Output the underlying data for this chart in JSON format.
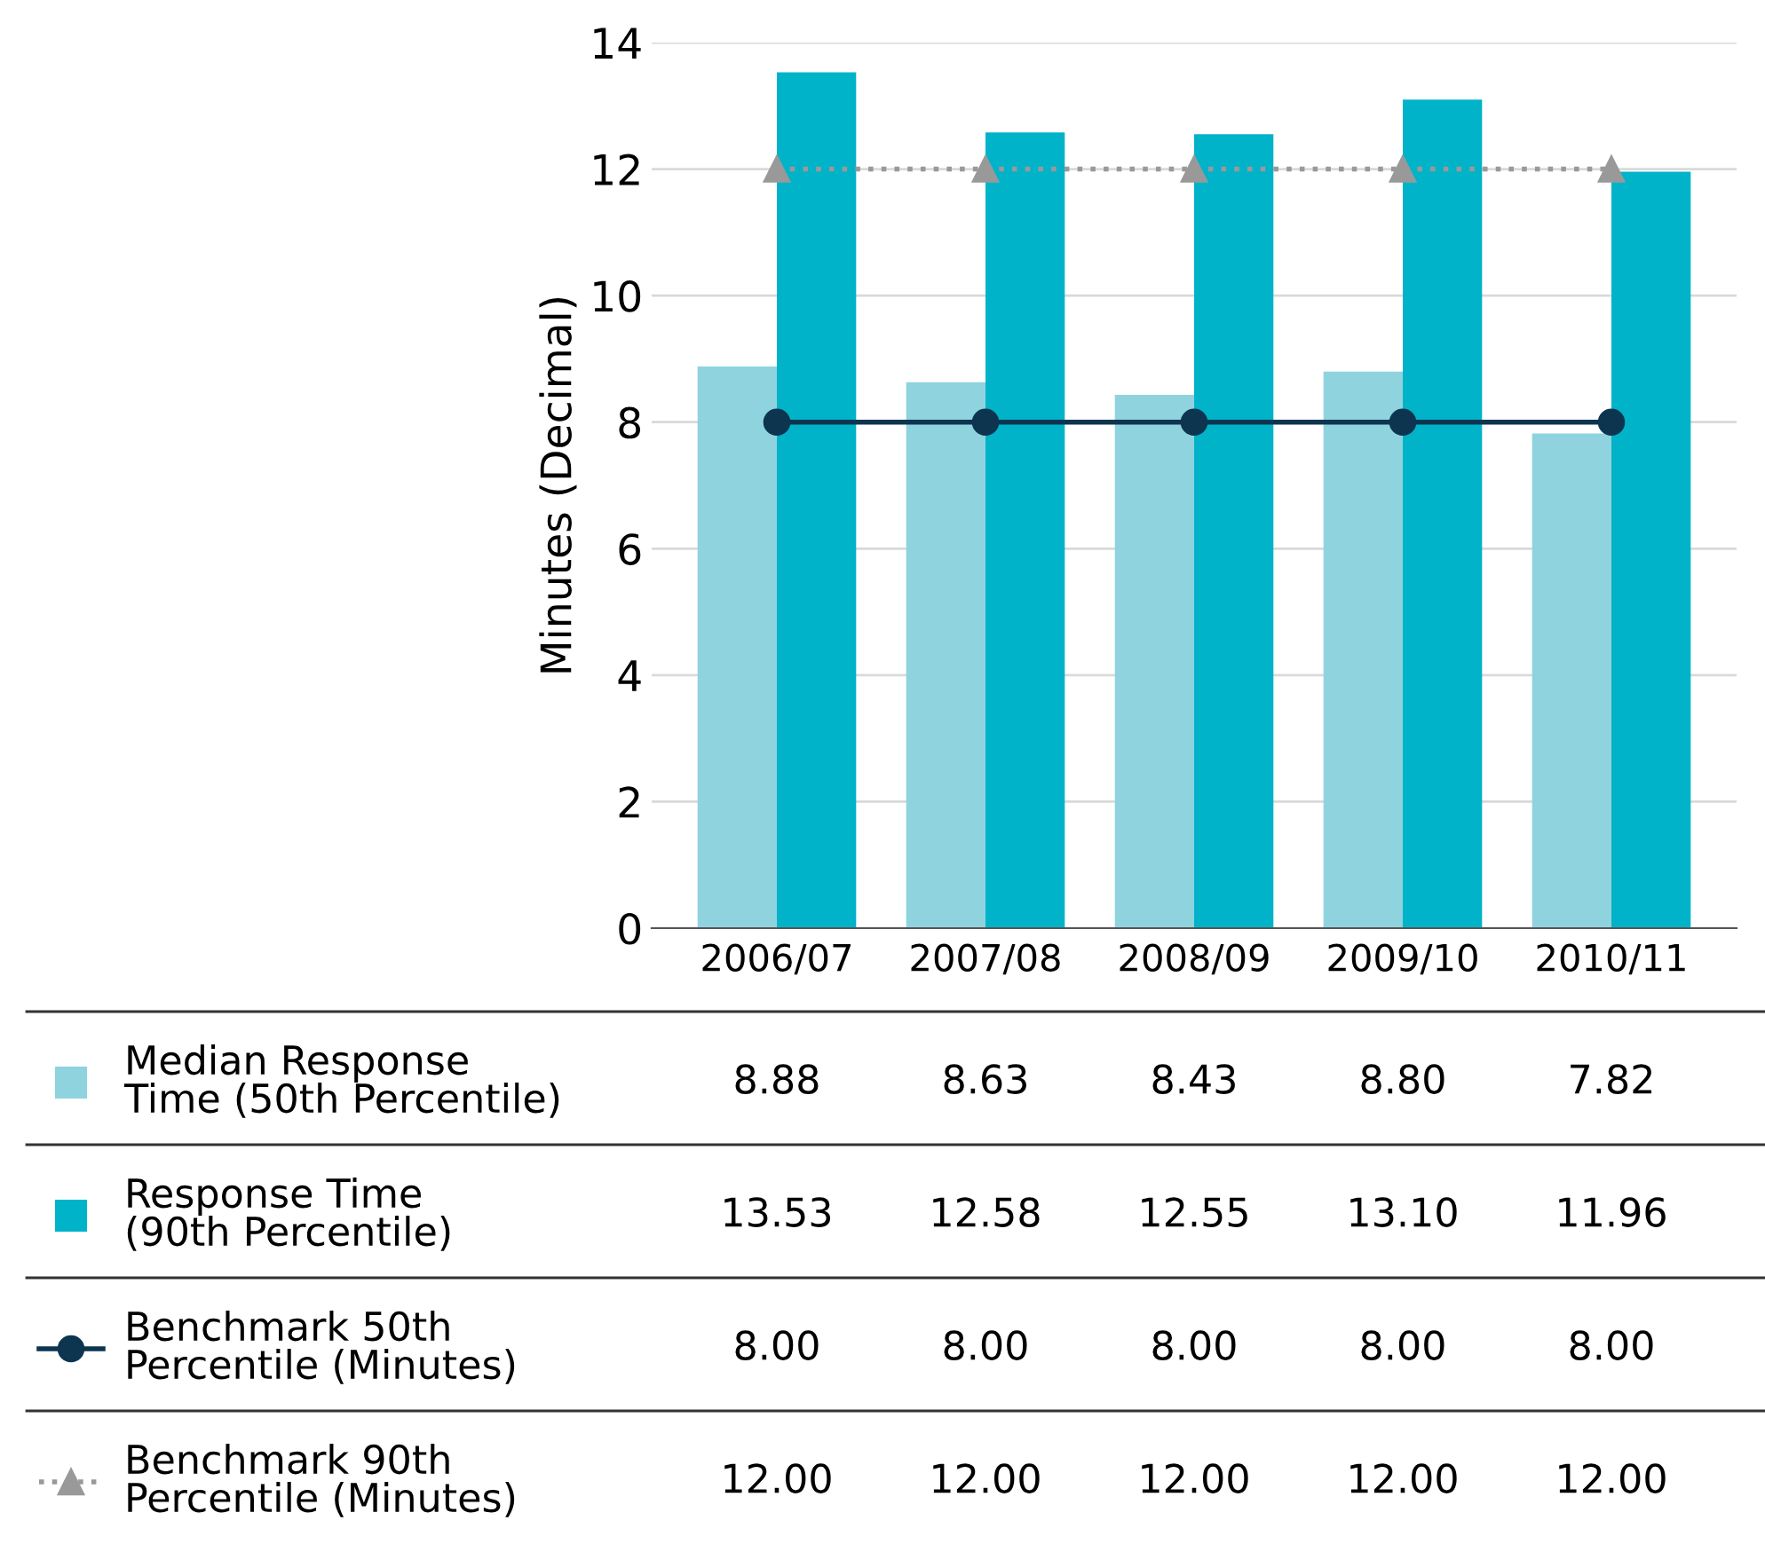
{
  "chart_data": {
    "type": "bar",
    "ylabel": "Minutes (Decimal)",
    "categories": [
      "2006/07",
      "2007/08",
      "2008/09",
      "2009/10",
      "2010/11"
    ],
    "series": [
      {
        "name": "Median Response\nTime (50th Percentile)",
        "color": "#8fd3df",
        "values": [
          8.88,
          8.63,
          8.43,
          8.8,
          7.82
        ],
        "value_labels": [
          "8.88",
          "8.63",
          "8.43",
          "8.80",
          "7.82"
        ]
      },
      {
        "name": "Response Time\n(90th Percentile)",
        "color": "#00b3c9",
        "values": [
          13.53,
          12.58,
          12.55,
          13.1,
          11.96
        ],
        "value_labels": [
          "13.53",
          "12.58",
          "12.55",
          "13.10",
          "11.96"
        ]
      },
      {
        "name": "Benchmark 50th\nPercentile (Minutes)",
        "type": "line",
        "color": "#0d3550",
        "marker": "circle",
        "line_style": "solid",
        "values": [
          8.0,
          8.0,
          8.0,
          8.0,
          8.0
        ],
        "value_labels": [
          "8.00",
          "8.00",
          "8.00",
          "8.00",
          "8.00"
        ]
      },
      {
        "name": "Benchmark 90th\nPercentile (Minutes)",
        "type": "line",
        "color": "#999999",
        "marker": "triangle",
        "line_style": "dotted",
        "values": [
          12.0,
          12.0,
          12.0,
          12.0,
          12.0
        ],
        "value_labels": [
          "12.00",
          "12.00",
          "12.00",
          "12.00",
          "12.00"
        ]
      }
    ],
    "ylim": [
      0,
      14
    ],
    "yticks": [
      0,
      2,
      4,
      6,
      8,
      10,
      12,
      14
    ],
    "grid": "y",
    "legend": "bottom left"
  }
}
